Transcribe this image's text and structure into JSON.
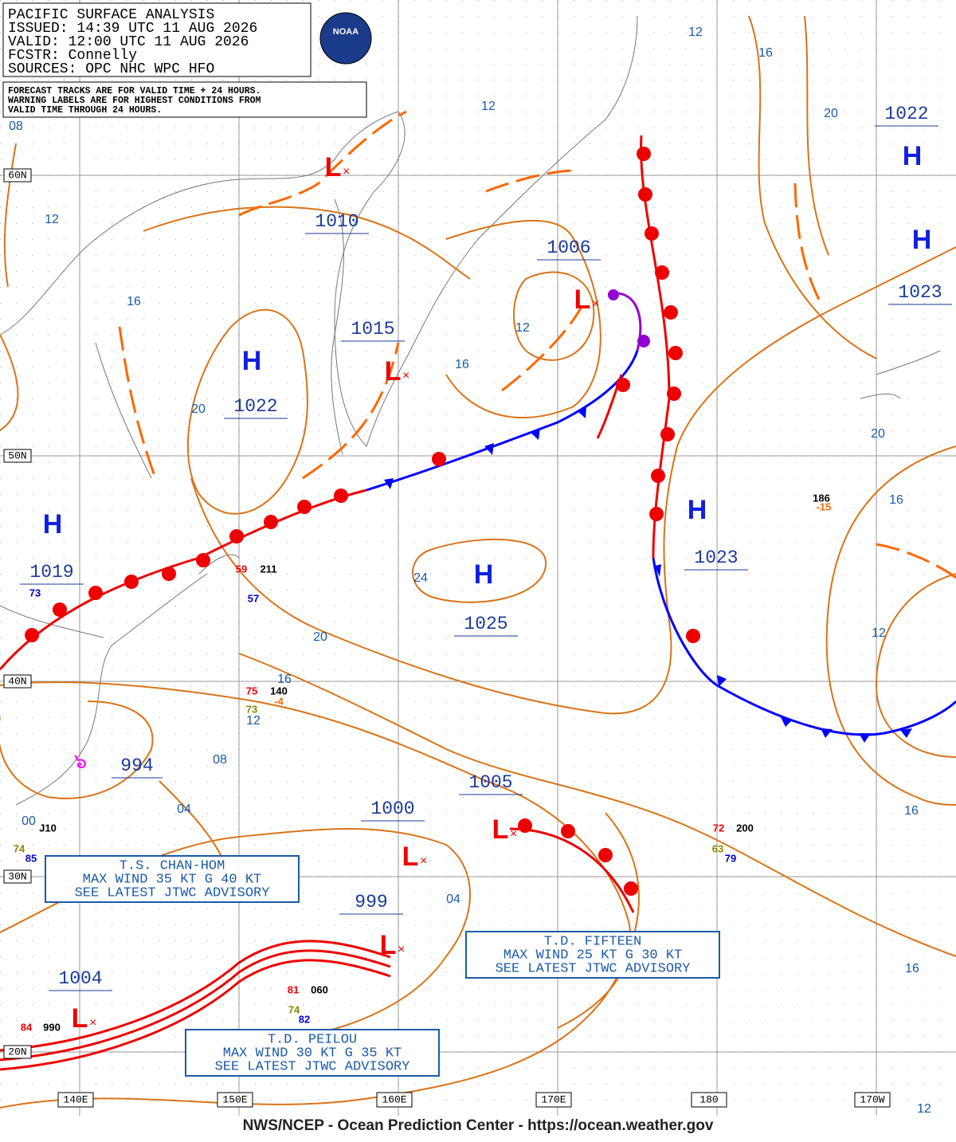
{
  "header": {
    "lines": [
      "PACIFIC SURFACE ANALYSIS",
      "ISSUED:  14:39 UTC 11 AUG 2026",
      "VALID:   12:00 UTC 11 AUG 2026",
      "FCSTR:   Connelly",
      "SOURCES: OPC NHC WPC HFO"
    ],
    "logo": "NOAA"
  },
  "note": {
    "lines": [
      "FORECAST TRACKS ARE FOR VALID TIME + 24 HOURS.",
      "WARNING LABELS ARE FOR HIGHEST CONDITIONS FROM",
      "VALID TIME THROUGH 24 HOURS."
    ]
  },
  "pressure_centers": [
    {
      "label": "H",
      "pressure": "1022"
    },
    {
      "label": "H",
      "pressure": "1022"
    },
    {
      "label": "H",
      "pressure": "1023"
    },
    {
      "label": "H",
      "pressure": "1023"
    },
    {
      "label": "H",
      "pressure": "1025"
    },
    {
      "label": "H",
      "pressure": "1019"
    },
    {
      "label": "L",
      "pressure": "1010"
    },
    {
      "label": "L",
      "pressure": "1015"
    },
    {
      "label": "L",
      "pressure": "1006"
    },
    {
      "label": "L",
      "pressure": "1005"
    },
    {
      "label": "L",
      "pressure": "1000"
    },
    {
      "label": "L",
      "pressure": "999"
    },
    {
      "label": "L",
      "pressure": "1004"
    }
  ],
  "tropical_center": {
    "pressure": "994"
  },
  "isobar_labels": [
    "12",
    "16",
    "20",
    "12",
    "08",
    "12",
    "16",
    "20",
    "12",
    "16",
    "20",
    "16",
    "24",
    "20",
    "12",
    "16",
    "12",
    "08",
    "04",
    "00",
    "04",
    "16",
    "16",
    "12"
  ],
  "stations": [
    "59",
    "211",
    "57",
    "73",
    "186",
    "-15",
    "75",
    "140",
    "73",
    "-4",
    "J10",
    "74",
    "85",
    "72",
    "200",
    "63",
    "79",
    "81",
    "060",
    "74",
    "82",
    "84",
    "990"
  ],
  "advisories": [
    {
      "lines": [
        "T.S. CHAN-HOM",
        "MAX WIND 35 KT G 40 KT",
        "SEE LATEST JTWC ADVISORY"
      ]
    },
    {
      "lines": [
        "T.D. FIFTEEN",
        "MAX WIND 25 KT G 30 KT",
        "SEE LATEST JTWC ADVISORY"
      ]
    },
    {
      "lines": [
        "T.D. PEILOU",
        "MAX WIND 30 KT G 35 KT",
        "SEE LATEST JTWC ADVISORY"
      ]
    }
  ],
  "lat_labels": [
    "60N",
    "50N",
    "40N",
    "30N",
    "20N"
  ],
  "lon_labels": [
    "140E",
    "150E",
    "160E",
    "170E",
    "180",
    "170W"
  ],
  "footer": "NWS/NCEP - Ocean Prediction Center - https://ocean.weather.gov"
}
